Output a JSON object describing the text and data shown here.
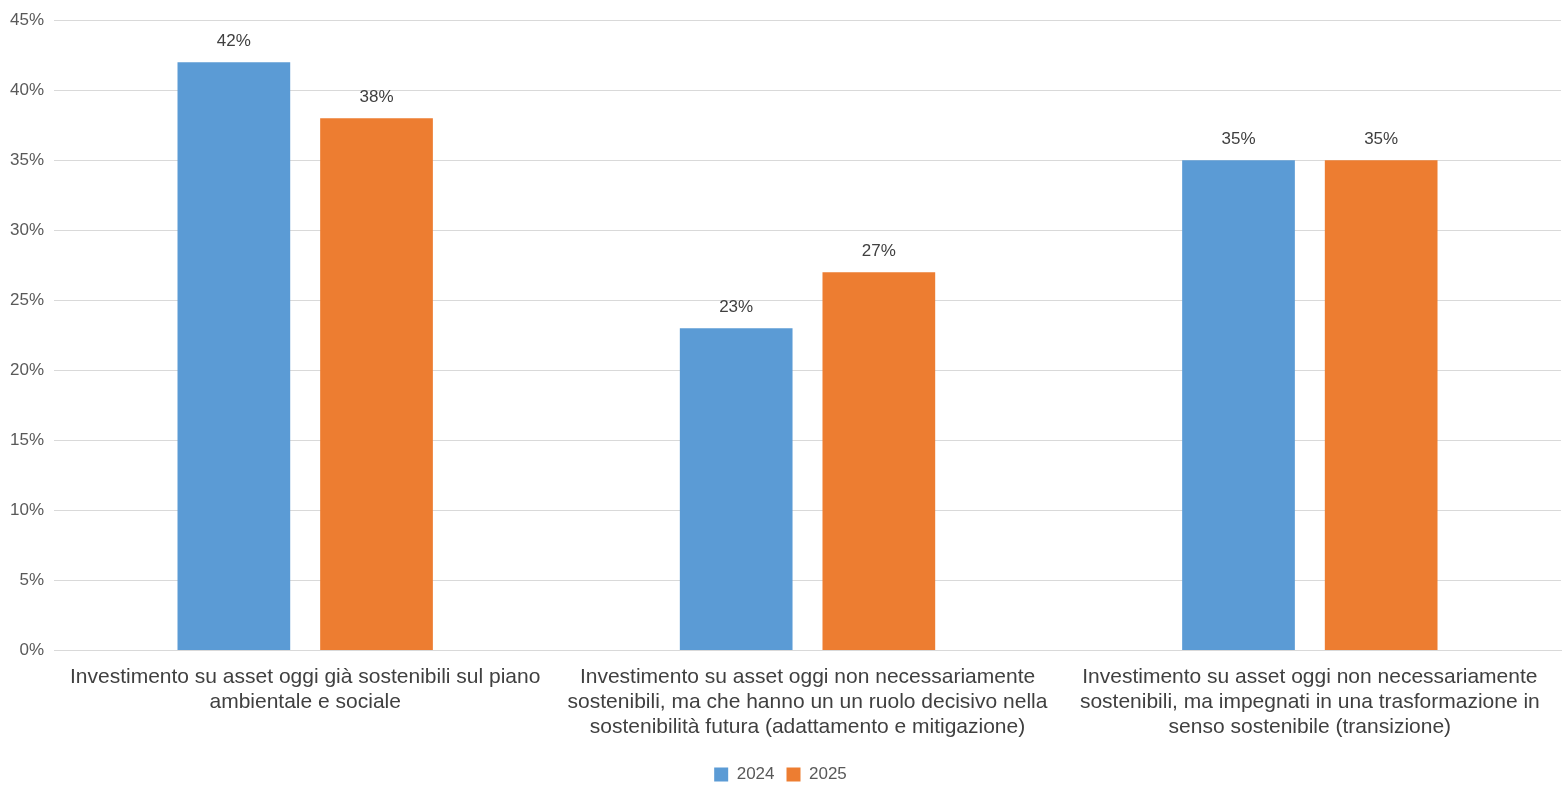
{
  "chart_data": {
    "type": "bar",
    "categories": [
      "Investimento su asset oggi già sostenibili sul piano ambientale e sociale",
      "Investimento su asset oggi non necessariamente sostenibili, ma che hanno un un ruolo decisivo nella sostenibilità futura (adattamento e mitigazione)",
      "Investimento su asset oggi non necessariamente sostenibili, ma impegnati in una trasformazione in senso sostenibile (transizione)"
    ],
    "series": [
      {
        "name": "2024",
        "color": "#5b9bd5",
        "values": [
          42,
          23,
          35
        ],
        "value_labels": [
          "42%",
          "23%",
          "35%"
        ]
      },
      {
        "name": "2025",
        "color": "#ed7d31",
        "values": [
          38,
          27,
          35
        ],
        "value_labels": [
          "38%",
          "27%",
          "35%"
        ]
      }
    ],
    "ylim": [
      0,
      45
    ],
    "yticks": [
      {
        "value": 0,
        "label": "0%"
      },
      {
        "value": 5,
        "label": "5%"
      },
      {
        "value": 10,
        "label": "10%"
      },
      {
        "value": 15,
        "label": "15%"
      },
      {
        "value": 20,
        "label": "20%"
      },
      {
        "value": 25,
        "label": "25%"
      },
      {
        "value": 30,
        "label": "30%"
      },
      {
        "value": 35,
        "label": "35%"
      },
      {
        "value": 40,
        "label": "40%"
      },
      {
        "value": 45,
        "label": "45%"
      }
    ],
    "grid": "y",
    "legend": "bottom"
  }
}
